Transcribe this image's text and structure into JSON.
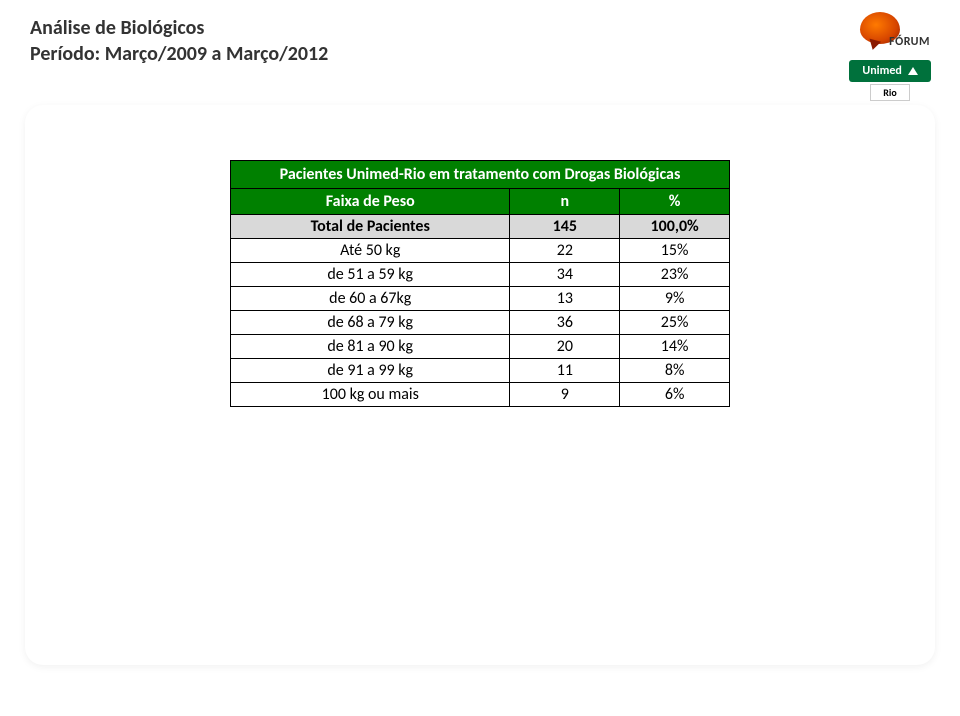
{
  "header": {
    "line1": "Análise de Biológicos",
    "line2": "Período: Março/2009 a Março/2012"
  },
  "logos": {
    "forum_label": "FÓRUM",
    "unimed_label": "Unimed",
    "unimed_sub": "Rio"
  },
  "table": {
    "title": "Pacientes Unimed-Rio em tratamento com Drogas Biológicas",
    "columns": [
      "Faixa de Peso",
      "n",
      "%"
    ],
    "total_row": {
      "label": "Total de Pacientes",
      "n": "145",
      "pct": "100,0%"
    },
    "rows": [
      {
        "label": "Até 50 kg",
        "n": "22",
        "pct": "15%"
      },
      {
        "label": "de 51 a 59 kg",
        "n": "34",
        "pct": "23%"
      },
      {
        "label": "de 60 a 67kg",
        "n": "13",
        "pct": "9%"
      },
      {
        "label": "de 68 a 79 kg",
        "n": "36",
        "pct": "25%"
      },
      {
        "label": "de 81 a 90 kg",
        "n": "20",
        "pct": "14%"
      },
      {
        "label": "de 91 a 99 kg",
        "n": "11",
        "pct": "8%"
      },
      {
        "label": "100 kg ou mais",
        "n": "9",
        "pct": "6%"
      }
    ],
    "styling": {
      "header_bg": "#008000",
      "header_color": "#ffffff",
      "total_bg": "#d9d9d9",
      "border_color": "#000000",
      "font_size_pt": 12,
      "font_family": "Calibri"
    }
  },
  "page_bg": "#ffffff"
}
